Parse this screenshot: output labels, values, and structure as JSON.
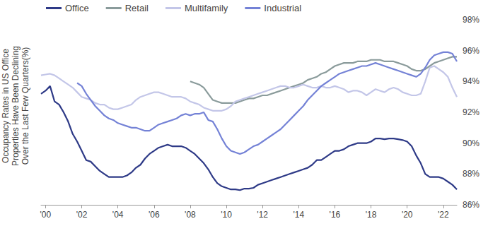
{
  "chart_data": {
    "type": "line",
    "y_label": "Occupancy Rates in US Office\nProperties Have Been Declining\nOver the Last Few Quarters(%)",
    "x": [
      1999.75,
      2000,
      2000.25,
      2000.5,
      2000.75,
      2001,
      2001.25,
      2001.5,
      2001.75,
      2002,
      2002.25,
      2002.5,
      2002.75,
      2003,
      2003.25,
      2003.5,
      2003.75,
      2004,
      2004.25,
      2004.5,
      2004.75,
      2005,
      2005.25,
      2005.5,
      2005.75,
      2006,
      2006.25,
      2006.5,
      2006.75,
      2007,
      2007.25,
      2007.5,
      2007.75,
      2008,
      2008.25,
      2008.5,
      2008.75,
      2009,
      2009.25,
      2009.5,
      2009.75,
      2010,
      2010.25,
      2010.5,
      2010.75,
      2011,
      2011.25,
      2011.5,
      2011.75,
      2012,
      2012.25,
      2012.5,
      2012.75,
      2013,
      2013.25,
      2013.5,
      2013.75,
      2014,
      2014.25,
      2014.5,
      2014.75,
      2015,
      2015.25,
      2015.5,
      2015.75,
      2016,
      2016.25,
      2016.5,
      2016.75,
      2017,
      2017.25,
      2017.5,
      2017.75,
      2018,
      2018.25,
      2018.5,
      2018.75,
      2019,
      2019.25,
      2019.5,
      2019.75,
      2020,
      2020.25,
      2020.5,
      2020.75,
      2021,
      2021.25,
      2021.5,
      2021.75,
      2022,
      2022.25,
      2022.5,
      2022.75
    ],
    "series": [
      {
        "name": "Office",
        "color": "#2e3a87",
        "values": [
          93.2,
          93.4,
          93.7,
          92.7,
          92.5,
          92.0,
          91.4,
          90.6,
          90.1,
          89.5,
          88.9,
          88.8,
          88.5,
          88.2,
          88.0,
          87.8,
          87.8,
          87.8,
          87.8,
          87.9,
          88.1,
          88.4,
          88.6,
          89.0,
          89.3,
          89.5,
          89.7,
          89.8,
          89.9,
          89.8,
          89.8,
          89.8,
          89.7,
          89.5,
          89.3,
          89.0,
          88.7,
          88.3,
          87.8,
          87.4,
          87.2,
          87.1,
          87.0,
          87.0,
          86.95,
          87.05,
          87.05,
          87.1,
          87.3,
          87.4,
          87.5,
          87.6,
          87.7,
          87.8,
          87.9,
          88.0,
          88.1,
          88.2,
          88.3,
          88.4,
          88.6,
          88.9,
          88.9,
          89.1,
          89.3,
          89.5,
          89.5,
          89.6,
          89.8,
          89.9,
          90.0,
          90.0,
          90.0,
          90.1,
          90.3,
          90.3,
          90.25,
          90.3,
          90.3,
          90.25,
          90.2,
          90.1,
          89.8,
          89.2,
          88.7,
          88.0,
          87.8,
          87.8,
          87.8,
          87.7,
          87.5,
          87.3,
          87.0
        ]
      },
      {
        "name": "Retail",
        "color": "#8a9b9b",
        "values": [
          null,
          null,
          null,
          null,
          null,
          null,
          null,
          null,
          null,
          null,
          null,
          null,
          null,
          null,
          null,
          null,
          null,
          null,
          null,
          null,
          null,
          null,
          null,
          null,
          null,
          null,
          null,
          null,
          null,
          null,
          null,
          null,
          null,
          94.0,
          93.9,
          93.8,
          93.6,
          93.2,
          92.8,
          92.7,
          92.6,
          92.6,
          92.6,
          92.6,
          92.7,
          92.8,
          92.9,
          92.9,
          93.0,
          93.1,
          93.1,
          93.2,
          93.3,
          93.4,
          93.5,
          93.6,
          93.7,
          93.8,
          93.9,
          94.1,
          94.2,
          94.3,
          94.5,
          94.6,
          94.8,
          95.0,
          95.1,
          95.2,
          95.2,
          95.2,
          95.3,
          95.3,
          95.3,
          95.4,
          95.4,
          95.4,
          95.3,
          95.3,
          95.3,
          95.2,
          95.1,
          95.0,
          94.8,
          94.7,
          94.7,
          94.8,
          95.0,
          95.2,
          95.3,
          95.4,
          95.5,
          95.6,
          95.6
        ]
      },
      {
        "name": "Multifamily",
        "color": "#c3c6e8",
        "values": [
          94.4,
          94.45,
          94.5,
          94.4,
          94.2,
          94.0,
          93.8,
          93.6,
          93.3,
          93.0,
          92.9,
          92.8,
          92.6,
          92.5,
          92.5,
          92.3,
          92.2,
          92.2,
          92.3,
          92.4,
          92.5,
          92.8,
          93.0,
          93.1,
          93.2,
          93.3,
          93.3,
          93.2,
          93.1,
          93.0,
          93.0,
          93.0,
          92.9,
          92.7,
          92.6,
          92.5,
          92.3,
          92.2,
          92.1,
          92.1,
          92.1,
          92.2,
          92.4,
          92.7,
          92.8,
          92.9,
          93.0,
          93.1,
          93.2,
          93.3,
          93.4,
          93.5,
          93.6,
          93.7,
          93.7,
          93.6,
          93.6,
          93.7,
          93.8,
          93.7,
          93.6,
          93.6,
          93.7,
          93.6,
          93.6,
          93.7,
          93.6,
          93.5,
          93.3,
          93.4,
          93.4,
          93.3,
          93.1,
          93.3,
          93.5,
          93.4,
          93.3,
          93.5,
          93.6,
          93.5,
          93.3,
          93.2,
          93.1,
          93.1,
          93.2,
          94.0,
          94.9,
          95.0,
          94.8,
          94.6,
          94.3,
          93.6,
          93.0
        ]
      },
      {
        "name": "Industrial",
        "color": "#7482d6",
        "values": [
          null,
          null,
          null,
          null,
          null,
          null,
          null,
          null,
          93.9,
          93.7,
          93.2,
          92.8,
          92.4,
          92.1,
          91.8,
          91.6,
          91.5,
          91.3,
          91.2,
          91.1,
          91.0,
          91.0,
          90.9,
          90.8,
          90.8,
          91.0,
          91.2,
          91.3,
          91.4,
          91.5,
          91.6,
          91.8,
          91.9,
          91.8,
          91.9,
          91.9,
          92.0,
          91.5,
          91.4,
          90.9,
          90.3,
          89.8,
          89.5,
          89.4,
          89.3,
          89.4,
          89.6,
          89.8,
          89.9,
          90.1,
          90.3,
          90.5,
          90.7,
          90.9,
          91.2,
          91.5,
          91.8,
          92.1,
          92.4,
          92.8,
          93.1,
          93.4,
          93.7,
          93.9,
          94.1,
          94.3,
          94.5,
          94.6,
          94.7,
          94.8,
          94.9,
          95.0,
          95.0,
          95.1,
          95.2,
          95.1,
          95.0,
          94.9,
          94.8,
          94.7,
          94.6,
          94.5,
          94.4,
          94.3,
          94.5,
          94.9,
          95.4,
          95.7,
          95.8,
          95.9,
          95.9,
          95.8,
          95.3
        ]
      }
    ],
    "xlim": [
      1999.75,
      2022.75
    ],
    "xticks": [
      {
        "value": 2000,
        "label": "'00"
      },
      {
        "value": 2002,
        "label": "'02"
      },
      {
        "value": 2004,
        "label": "'04"
      },
      {
        "value": 2006,
        "label": "'06"
      },
      {
        "value": 2008,
        "label": "'08"
      },
      {
        "value": 2010,
        "label": "'10"
      },
      {
        "value": 2012,
        "label": "'12"
      },
      {
        "value": 2014,
        "label": "'14"
      },
      {
        "value": 2016,
        "label": "'16"
      },
      {
        "value": 2018,
        "label": "'18"
      },
      {
        "value": 2020,
        "label": "'20"
      },
      {
        "value": 2022,
        "label": "'22"
      }
    ],
    "ylim": [
      86,
      98
    ],
    "yticks": [
      {
        "value": 86,
        "label": "86%"
      },
      {
        "value": 88,
        "label": "88%"
      },
      {
        "value": 90,
        "label": "90%"
      },
      {
        "value": 92,
        "label": "92%"
      },
      {
        "value": 94,
        "label": "94%"
      },
      {
        "value": 96,
        "label": "96%"
      },
      {
        "value": 98,
        "label": "98%"
      }
    ],
    "grid": false,
    "legend": "top"
  }
}
